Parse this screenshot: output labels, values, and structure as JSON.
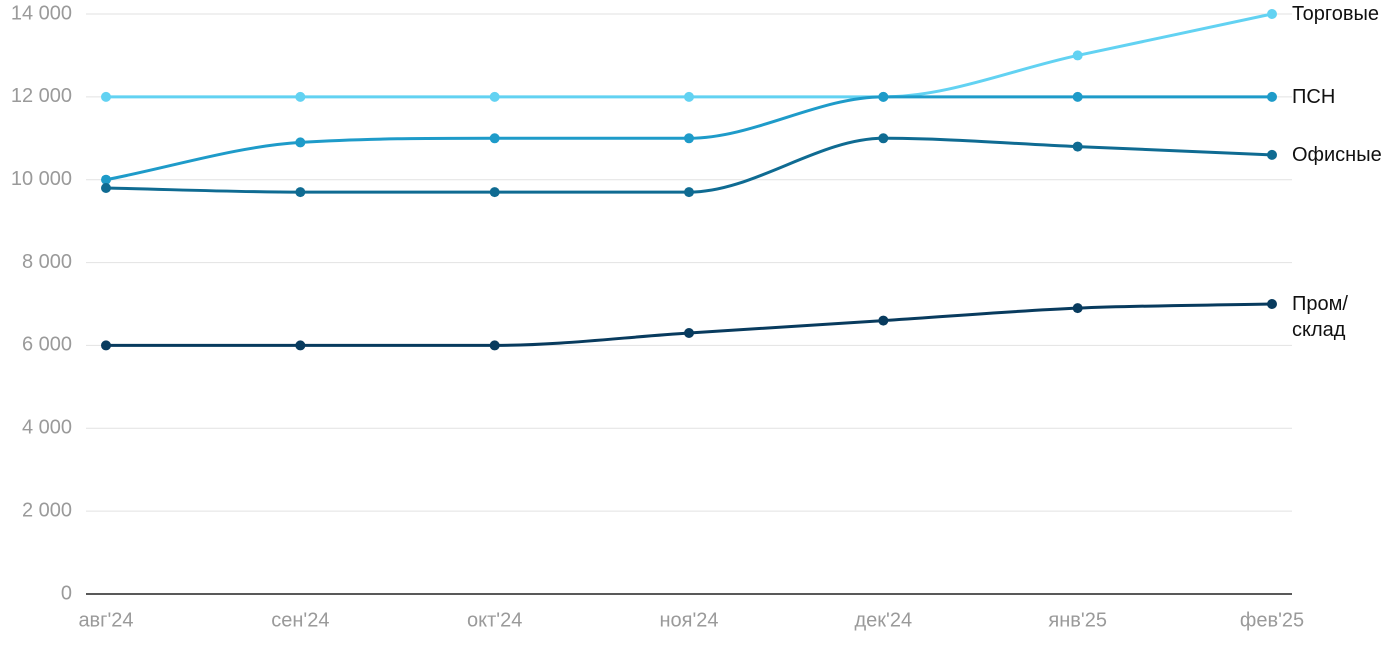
{
  "chart_data": {
    "type": "line",
    "categories": [
      "авг'24",
      "сен'24",
      "окт'24",
      "ноя'24",
      "дек'24",
      "янв'25",
      "фев'25"
    ],
    "series": [
      {
        "name": "Торговые",
        "color": "#62d2f2",
        "values": [
          12000,
          12000,
          12000,
          12000,
          12000,
          13000,
          14000
        ]
      },
      {
        "name": "ПСН",
        "color": "#1e9bc9",
        "values": [
          10000,
          10900,
          11000,
          11000,
          12000,
          12000,
          12000
        ]
      },
      {
        "name": "Офисные",
        "color": "#0f6b92",
        "values": [
          9800,
          9700,
          9700,
          9700,
          11000,
          10800,
          10600
        ]
      },
      {
        "name": "Пром/\nсклад",
        "color": "#083b5e",
        "values": [
          6000,
          6000,
          6000,
          6300,
          6600,
          6900,
          7000
        ]
      }
    ],
    "ylim": [
      0,
      14000
    ],
    "yticks": [
      0,
      {
        "value": 2000,
        "label": "2 000"
      },
      {
        "value": 4000,
        "label": "4 000"
      },
      {
        "value": 6000,
        "label": "6 000"
      },
      {
        "value": 8000,
        "label": "8 000"
      },
      {
        "value": 10000,
        "label": "10 000"
      },
      {
        "value": 12000,
        "label": "12 000"
      },
      {
        "value": 14000,
        "label": "14 000"
      }
    ],
    "grid": true
  }
}
